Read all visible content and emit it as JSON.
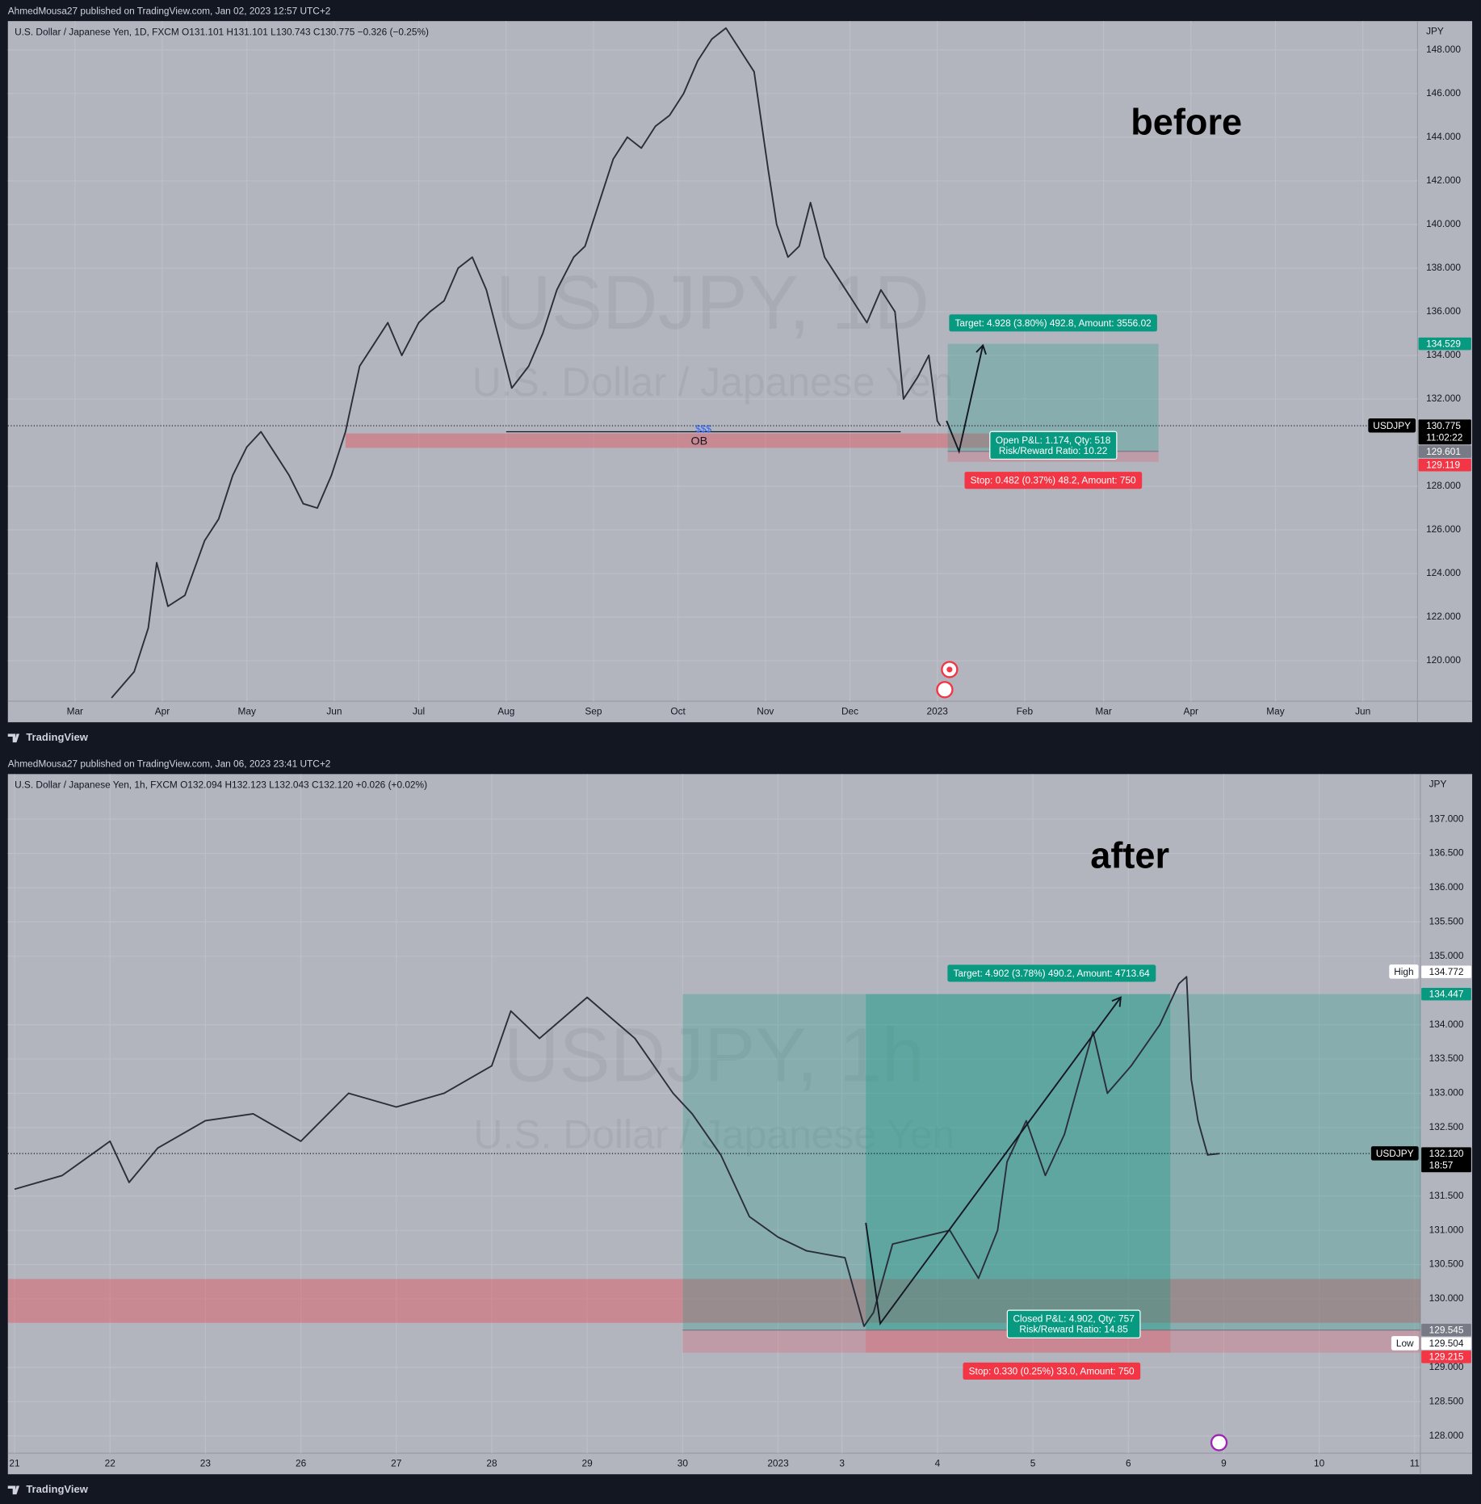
{
  "chart_data": [
    {
      "type": "line",
      "header": "AhmedMousa27 published on TradingView.com, Jan 02, 2023 12:57 UTC+2",
      "title": "U.S. Dollar / Japanese Yen, 1D, FXCM  O131.101  H131.101  L130.743  C130.775  −0.326 (−0.25%)",
      "watermark": [
        "USDJPY, 1D",
        "U.S. Dollar / Japanese Yen"
      ],
      "annotation": "before",
      "currency": "JPY",
      "footer": "TradingView",
      "color": "#2a2e39",
      "x": [
        72,
        80,
        85,
        88,
        92,
        98,
        105,
        110,
        115,
        120,
        125,
        130,
        135,
        140,
        145,
        150,
        155,
        160,
        165,
        170,
        175,
        181,
        185,
        190,
        195,
        200,
        205,
        210,
        214,
        220,
        225,
        230,
        236,
        240,
        245,
        250,
        255,
        260,
        265,
        270,
        275,
        280,
        285,
        290,
        295,
        300,
        305,
        308,
        312,
        316,
        320,
        325,
        330,
        335,
        340,
        345,
        350,
        353,
        358,
        362,
        365,
        366
      ],
      "values": [
        118.3,
        119.5,
        121.5,
        124.5,
        122.5,
        123.0,
        125.5,
        126.5,
        128.5,
        129.8,
        130.5,
        129.5,
        128.5,
        127.2,
        127.0,
        128.5,
        130.5,
        133.5,
        134.5,
        135.5,
        134.0,
        135.5,
        136.0,
        136.5,
        138.0,
        138.5,
        137.0,
        134.5,
        132.5,
        133.5,
        135.0,
        137.0,
        138.5,
        139.0,
        141.0,
        143.0,
        144.0,
        143.5,
        144.5,
        145.0,
        146.0,
        147.5,
        148.5,
        149.0,
        148.0,
        147.0,
        142.5,
        140.0,
        138.5,
        139.0,
        141.0,
        138.5,
        137.5,
        136.5,
        135.5,
        137.0,
        136.0,
        132.0,
        133.0,
        134.0,
        131.0,
        130.775
      ],
      "xlim": [
        35.2,
        535.4
      ],
      "ylim": [
        118.15,
        149.32
      ],
      "xticks": [
        {
          "value": 59,
          "label": "Mar"
        },
        {
          "value": 90,
          "label": "Apr"
        },
        {
          "value": 120,
          "label": "May"
        },
        {
          "value": 151,
          "label": "Jun"
        },
        {
          "value": 181,
          "label": "Jul"
        },
        {
          "value": 212,
          "label": "Aug"
        },
        {
          "value": 243,
          "label": "Sep"
        },
        {
          "value": 273,
          "label": "Oct"
        },
        {
          "value": 304,
          "label": "Nov"
        },
        {
          "value": 334,
          "label": "Dec"
        },
        {
          "value": 365,
          "label": "2023"
        },
        {
          "value": 396,
          "label": "Feb"
        },
        {
          "value": 424,
          "label": "Mar"
        },
        {
          "value": 455,
          "label": "Apr"
        },
        {
          "value": 485,
          "label": "May"
        },
        {
          "value": 516,
          "label": "Jun"
        }
      ],
      "yticks": [
        {
          "value": 120,
          "label": "120.000"
        },
        {
          "value": 122,
          "label": "122.000"
        },
        {
          "value": 124,
          "label": "124.000"
        },
        {
          "value": 126,
          "label": "126.000"
        },
        {
          "value": 128,
          "label": "128.000"
        },
        {
          "value": 132,
          "label": "132.000"
        },
        {
          "value": 134,
          "label": "134.000"
        },
        {
          "value": 136,
          "label": "136.000"
        },
        {
          "value": 138,
          "label": "138.000"
        },
        {
          "value": 140,
          "label": "140.000"
        },
        {
          "value": 142,
          "label": "142.000"
        },
        {
          "value": 144,
          "label": "144.000"
        },
        {
          "value": 146,
          "label": "146.000"
        },
        {
          "value": 148,
          "label": "148.000"
        }
      ],
      "grid": true,
      "zone": {
        "top": 130.42,
        "bottom": 129.76,
        "from": 155,
        "to": 406,
        "label": "OB",
        "color": "#f23645"
      },
      "liquidity": {
        "value": 130.5,
        "from": 212,
        "to": 352,
        "label": "$$$"
      },
      "arrow": {
        "x": [
          368.3,
          372.7,
          381.2
        ],
        "values": [
          131.0,
          129.6,
          134.46
        ]
      },
      "position": {
        "from": 368.7,
        "to": 443.5,
        "target": 134.529,
        "entry": 129.601,
        "stop": 129.119,
        "target_label": "Target: 4.928 (3.80%) 492.8, Amount: 3556.02",
        "pnl_label": [
          "Open P&L: 1.174, Qty: 518",
          "Risk/Reward Ratio: 10.22"
        ],
        "stop_label": "Stop: 0.482 (0.37%) 48.2, Amount: 750"
      },
      "price_tags": [
        {
          "value": 134.529,
          "label": "134.529",
          "color": "#089981"
        },
        {
          "value": 130.775,
          "label": "130.775",
          "tag": "USDJPY",
          "sub": "11:02:22",
          "color": "#000000"
        },
        {
          "value": 129.601,
          "label": "129.601",
          "color": "#787b86"
        },
        {
          "value": 129.119,
          "label": "129.119",
          "color": "#f23645"
        }
      ]
    },
    {
      "type": "line",
      "header": "AhmedMousa27 published on TradingView.com, Jan 06, 2023 23:41 UTC+2",
      "title": "U.S. Dollar / Japanese Yen, 1h, FXCM  O132.094  H132.123  L132.043  C132.120  +0.026 (+0.02%)",
      "watermark": [
        "USDJPY, 1h",
        "U.S. Dollar / Japanese Yen"
      ],
      "annotation": "after",
      "currency": "JPY",
      "footer": "TradingView",
      "color": "#2a2e39",
      "x": [
        0,
        0.5,
        1.0,
        1.2,
        1.5,
        2.0,
        2.5,
        3.0,
        3.5,
        4.0,
        4.5,
        5.0,
        5.2,
        5.5,
        6.0,
        6.5,
        6.9,
        7.1,
        7.4,
        7.7,
        8.0,
        8.3,
        8.7,
        8.9,
        9.0,
        9.2,
        9.5,
        9.8,
        10.1,
        10.3,
        10.4,
        10.6,
        10.8,
        11.0,
        11.3,
        11.45,
        11.7,
        12.0,
        12.1,
        12.2,
        12.28,
        12.33,
        12.4,
        12.5,
        12.62
      ],
      "values": [
        131.6,
        131.8,
        132.3,
        131.7,
        132.2,
        132.6,
        132.7,
        132.3,
        133.0,
        132.8,
        133.0,
        133.4,
        134.2,
        133.8,
        134.4,
        133.8,
        133.0,
        132.7,
        132.1,
        131.2,
        130.9,
        130.7,
        130.6,
        129.6,
        129.8,
        130.8,
        130.9,
        131.0,
        130.3,
        131.0,
        132.0,
        132.6,
        131.8,
        132.4,
        133.9,
        133.0,
        133.4,
        134.0,
        134.3,
        134.6,
        134.7,
        133.2,
        132.6,
        132.1,
        132.12
      ],
      "xlim": [
        -0.07,
        14.73
      ],
      "ylim": [
        127.748,
        137.658
      ],
      "xticks": [
        {
          "value": 0,
          "label": "21"
        },
        {
          "value": 1,
          "label": "22"
        },
        {
          "value": 2,
          "label": "23"
        },
        {
          "value": 3,
          "label": "26"
        },
        {
          "value": 4,
          "label": "27"
        },
        {
          "value": 5,
          "label": "28"
        },
        {
          "value": 6,
          "label": "29"
        },
        {
          "value": 7,
          "label": "30"
        },
        {
          "value": 8,
          "label": "2023"
        },
        {
          "value": 8.67,
          "label": "3"
        },
        {
          "value": 9.67,
          "label": "4"
        },
        {
          "value": 10.67,
          "label": "5"
        },
        {
          "value": 11.67,
          "label": "6"
        },
        {
          "value": 12.67,
          "label": "9"
        },
        {
          "value": 13.67,
          "label": "10"
        },
        {
          "value": 14.67,
          "label": "11"
        }
      ],
      "yticks": [
        {
          "value": 128,
          "label": "128.000"
        },
        {
          "value": 128.5,
          "label": "128.500"
        },
        {
          "value": 129,
          "label": "129.000"
        },
        {
          "value": 130,
          "label": "130.000"
        },
        {
          "value": 130.5,
          "label": "130.500"
        },
        {
          "value": 131,
          "label": "131.000"
        },
        {
          "value": 131.5,
          "label": "131.500"
        },
        {
          "value": 132.5,
          "label": "132.500"
        },
        {
          "value": 133,
          "label": "133.000"
        },
        {
          "value": 133.5,
          "label": "133.500"
        },
        {
          "value": 134,
          "label": "134.000"
        },
        {
          "value": 135,
          "label": "135.000"
        },
        {
          "value": 135.5,
          "label": "135.500"
        },
        {
          "value": 136,
          "label": "136.000"
        },
        {
          "value": 136.5,
          "label": "136.500"
        },
        {
          "value": 137,
          "label": "137.000"
        }
      ],
      "grid": true,
      "zone": {
        "top": 130.29,
        "bottom": 129.65,
        "from": -0.07,
        "to": 14.73,
        "color": "#f23645"
      },
      "arrow": {
        "x": [
          8.92,
          9.07,
          11.59
        ],
        "values": [
          131.11,
          129.64,
          134.4
        ]
      },
      "position": {
        "from": 7.0,
        "to": 14.73,
        "closed_from": 8.92,
        "closed_to": 12.11,
        "target": 134.447,
        "entry": 129.545,
        "stop": 129.215,
        "target_label": "Target: 4.902 (3.78%) 490.2, Amount: 4713.64",
        "pnl_label": [
          "Closed P&L: 4.902, Qty: 757",
          "Risk/Reward Ratio: 14.85"
        ],
        "stop_label": "Stop: 0.330 (0.25%) 33.0, Amount: 750"
      },
      "price_tags": [
        {
          "value": 134.772,
          "label": "134.772",
          "tag": "High",
          "color": "#ffffff"
        },
        {
          "value": 134.447,
          "label": "134.447",
          "color": "#089981"
        },
        {
          "value": 132.12,
          "label": "132.120",
          "tag": "USDJPY",
          "sub": "18:57",
          "color": "#000000"
        },
        {
          "value": 129.545,
          "label": "129.545",
          "color": "#787b86"
        },
        {
          "value": 129.504,
          "label": "129.504",
          "tag": "Low",
          "color": "#ffffff"
        },
        {
          "value": 129.215,
          "label": "129.215",
          "color": "#f23645"
        }
      ]
    }
  ]
}
